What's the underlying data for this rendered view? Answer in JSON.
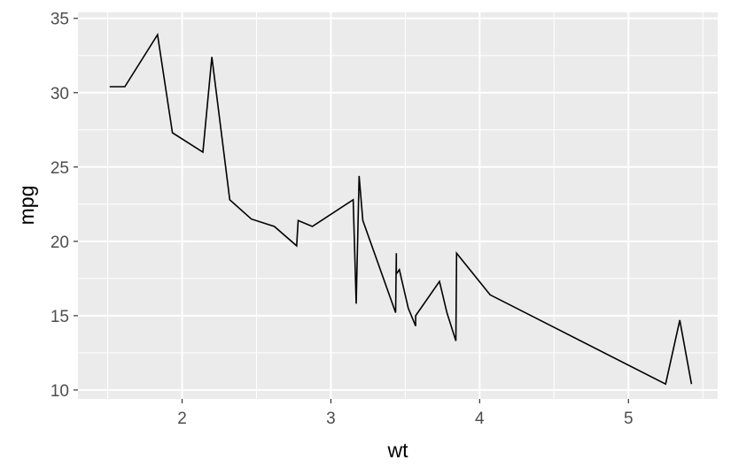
{
  "chart_data": {
    "type": "line",
    "xlabel": "wt",
    "ylabel": "mpg",
    "xlim": [
      1.3,
      5.6
    ],
    "ylim": [
      9.4,
      35.4
    ],
    "x_ticks": [
      2,
      3,
      4,
      5
    ],
    "y_ticks": [
      10,
      15,
      20,
      25,
      30,
      35
    ],
    "x_minor": [
      1.5,
      2.5,
      3.5,
      4.5,
      5.5
    ],
    "y_minor": [
      12.5,
      17.5,
      22.5,
      27.5,
      32.5
    ],
    "grid": true,
    "colors": {
      "panel": "#ebebeb",
      "grid": "#ffffff",
      "line": "#000000"
    },
    "series": [
      {
        "x": [
          1.513,
          1.615,
          1.835,
          1.935,
          2.14,
          2.2,
          2.32,
          2.465,
          2.62,
          2.77,
          2.78,
          2.875,
          3.15,
          3.17,
          3.19,
          3.215,
          3.435,
          3.44,
          3.44,
          3.46,
          3.52,
          3.57,
          3.57,
          3.73,
          3.78,
          3.84,
          3.845,
          4.07,
          5.25,
          5.345,
          5.424
        ],
        "y": [
          30.4,
          30.4,
          33.9,
          27.3,
          26.0,
          32.4,
          22.8,
          21.5,
          21.0,
          19.7,
          21.4,
          21.0,
          22.8,
          15.8,
          24.4,
          21.4,
          15.2,
          19.2,
          17.8,
          18.1,
          15.5,
          14.3,
          15.0,
          17.3,
          15.2,
          13.3,
          19.2,
          16.4,
          10.4,
          14.7,
          10.4
        ]
      }
    ]
  }
}
